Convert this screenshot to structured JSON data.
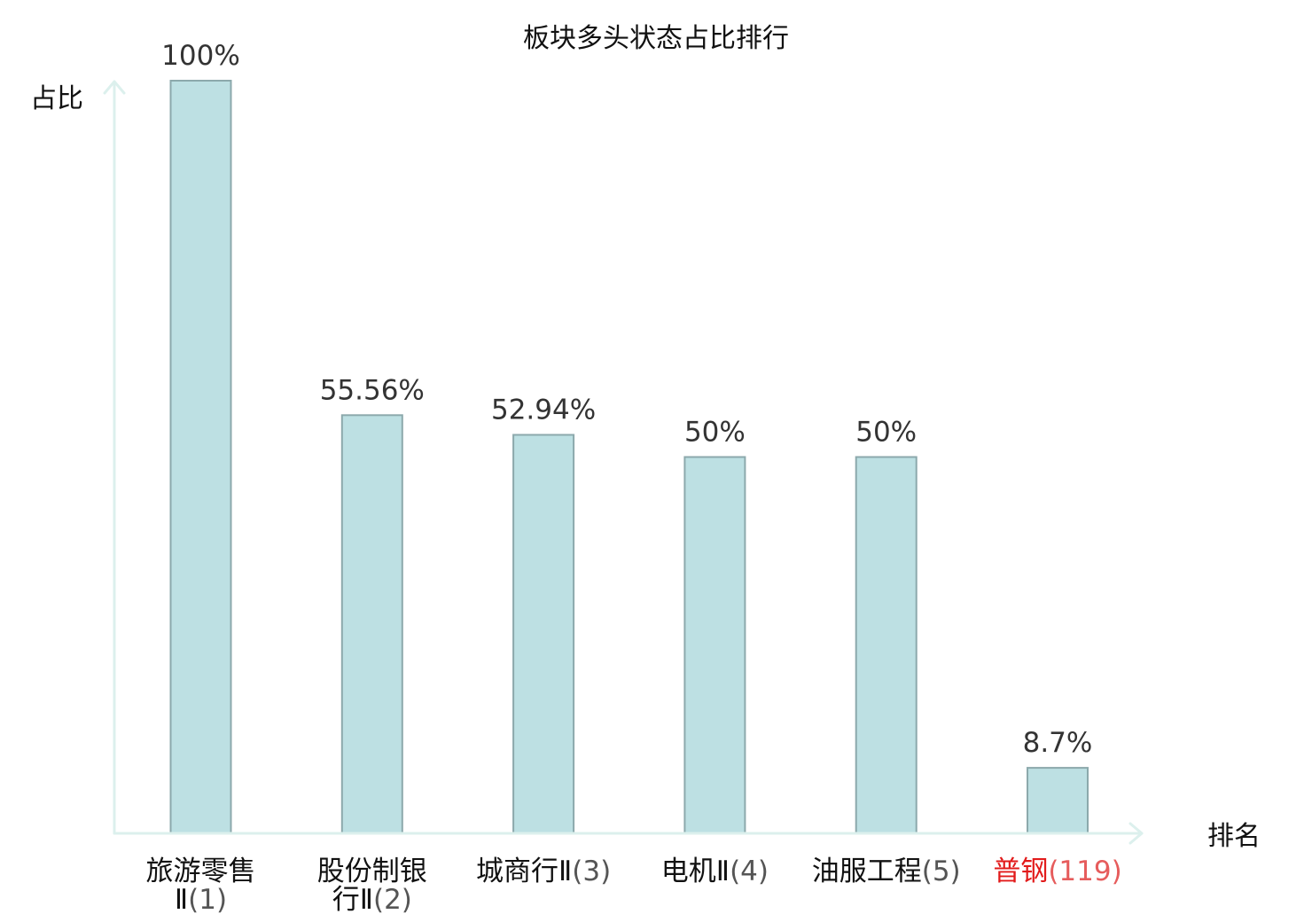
{
  "chart_data": {
    "type": "bar",
    "title": "板块多头状态占比排行",
    "xlabel": "排名",
    "ylabel": "占比",
    "ylim": [
      0,
      100
    ],
    "grid": false,
    "categories": [
      "旅游零售Ⅱ",
      "股份制银行Ⅱ",
      "城商行Ⅱ",
      "电机Ⅱ",
      "油服工程",
      "普钢"
    ],
    "ranks": [
      "(1)",
      "(2)",
      "(3)",
      "(4)",
      "(5)",
      "(119)"
    ],
    "values": [
      100,
      55.56,
      52.94,
      50,
      50,
      8.7
    ],
    "value_labels": [
      "100%",
      "55.56%",
      "52.94%",
      "50%",
      "50%",
      "8.7%"
    ],
    "highlight_index": 5,
    "colors": {
      "bar_fill": "#bde0e3",
      "bar_edge": "#8ca9ac",
      "axis": "#dcf0ed",
      "text": "#111111",
      "value_text": "#333333",
      "rank_text": "#555555",
      "highlight": "#e21b1b",
      "highlight_rank": "#e65c5c"
    }
  }
}
